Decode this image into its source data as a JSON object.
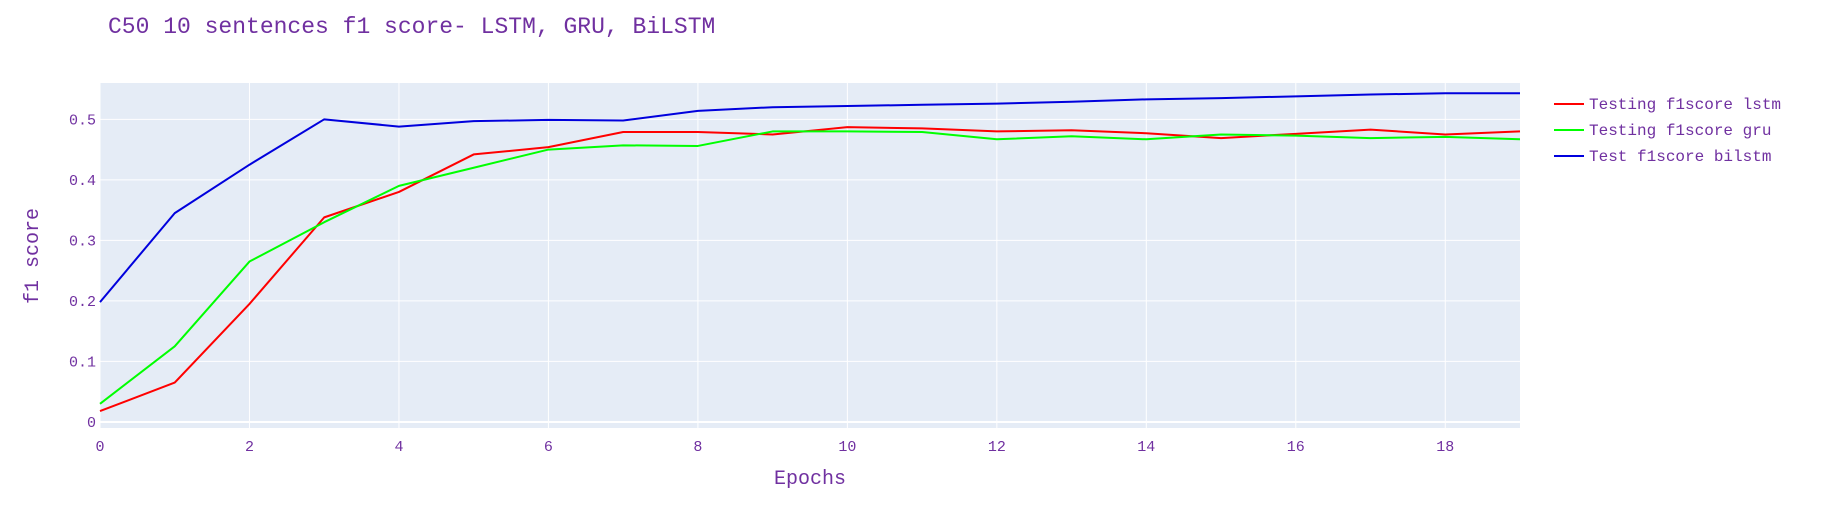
{
  "colors": {
    "text": "#7030a0",
    "plot_bg": "#e5ecf6",
    "grid": "#ffffff"
  },
  "chart_data": {
    "type": "line",
    "title": "C50 10 sentences f1 score- LSTM, GRU, BiLSTM",
    "xlabel": "Epochs",
    "ylabel": "f1 score",
    "xlim": [
      0,
      19
    ],
    "ylim": [
      -0.01,
      0.56
    ],
    "x_ticks": [
      0,
      2,
      4,
      6,
      8,
      10,
      12,
      14,
      16,
      18
    ],
    "y_ticks": [
      0,
      0.1,
      0.2,
      0.3,
      0.4,
      0.5
    ],
    "y_tick_labels": [
      "0",
      "0.1",
      "0.2",
      "0.3",
      "0.4",
      "0.5"
    ],
    "grid": true,
    "legend_position": "right",
    "x": [
      0,
      1,
      2,
      3,
      4,
      5,
      6,
      7,
      8,
      9,
      10,
      11,
      12,
      13,
      14,
      15,
      16,
      17,
      18,
      19
    ],
    "series": [
      {
        "name": "Testing f1score lstm",
        "color": "#ff0000",
        "values": [
          0.018,
          0.065,
          0.195,
          0.338,
          0.38,
          0.442,
          0.454,
          0.479,
          0.479,
          0.475,
          0.487,
          0.485,
          0.48,
          0.482,
          0.477,
          0.469,
          0.476,
          0.483,
          0.475,
          0.48
        ]
      },
      {
        "name": "Testing f1score gru",
        "color": "#00ff00",
        "values": [
          0.03,
          0.125,
          0.265,
          0.33,
          0.39,
          0.42,
          0.45,
          0.457,
          0.456,
          0.48,
          0.48,
          0.479,
          0.467,
          0.472,
          0.467,
          0.475,
          0.473,
          0.469,
          0.471,
          0.467
        ]
      },
      {
        "name": "Test f1score bilstm",
        "color": "#0000dd",
        "values": [
          0.198,
          0.345,
          0.425,
          0.5,
          0.488,
          0.497,
          0.499,
          0.498,
          0.514,
          0.52,
          0.522,
          0.524,
          0.526,
          0.529,
          0.533,
          0.535,
          0.538,
          0.541,
          0.543,
          0.543
        ]
      }
    ]
  }
}
